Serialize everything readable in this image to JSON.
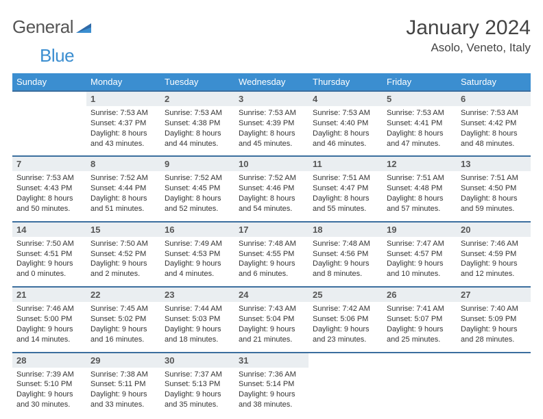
{
  "brand": {
    "part1": "General",
    "part2": "Blue"
  },
  "title": "January 2024",
  "location": "Asolo, Veneto, Italy",
  "colors": {
    "header_bg": "#3b8ed0",
    "row_border": "#3b6e9e",
    "daynum_bg": "#eaeef1",
    "text": "#333333",
    "logo_gray": "#555555",
    "logo_blue": "#3b8ed0"
  },
  "weekdays": [
    "Sunday",
    "Monday",
    "Tuesday",
    "Wednesday",
    "Thursday",
    "Friday",
    "Saturday"
  ],
  "weeks": [
    [
      null,
      {
        "n": "1",
        "sun": "Sunrise: 7:53 AM",
        "set": "Sunset: 4:37 PM",
        "d1": "Daylight: 8 hours",
        "d2": "and 43 minutes."
      },
      {
        "n": "2",
        "sun": "Sunrise: 7:53 AM",
        "set": "Sunset: 4:38 PM",
        "d1": "Daylight: 8 hours",
        "d2": "and 44 minutes."
      },
      {
        "n": "3",
        "sun": "Sunrise: 7:53 AM",
        "set": "Sunset: 4:39 PM",
        "d1": "Daylight: 8 hours",
        "d2": "and 45 minutes."
      },
      {
        "n": "4",
        "sun": "Sunrise: 7:53 AM",
        "set": "Sunset: 4:40 PM",
        "d1": "Daylight: 8 hours",
        "d2": "and 46 minutes."
      },
      {
        "n": "5",
        "sun": "Sunrise: 7:53 AM",
        "set": "Sunset: 4:41 PM",
        "d1": "Daylight: 8 hours",
        "d2": "and 47 minutes."
      },
      {
        "n": "6",
        "sun": "Sunrise: 7:53 AM",
        "set": "Sunset: 4:42 PM",
        "d1": "Daylight: 8 hours",
        "d2": "and 48 minutes."
      }
    ],
    [
      {
        "n": "7",
        "sun": "Sunrise: 7:53 AM",
        "set": "Sunset: 4:43 PM",
        "d1": "Daylight: 8 hours",
        "d2": "and 50 minutes."
      },
      {
        "n": "8",
        "sun": "Sunrise: 7:52 AM",
        "set": "Sunset: 4:44 PM",
        "d1": "Daylight: 8 hours",
        "d2": "and 51 minutes."
      },
      {
        "n": "9",
        "sun": "Sunrise: 7:52 AM",
        "set": "Sunset: 4:45 PM",
        "d1": "Daylight: 8 hours",
        "d2": "and 52 minutes."
      },
      {
        "n": "10",
        "sun": "Sunrise: 7:52 AM",
        "set": "Sunset: 4:46 PM",
        "d1": "Daylight: 8 hours",
        "d2": "and 54 minutes."
      },
      {
        "n": "11",
        "sun": "Sunrise: 7:51 AM",
        "set": "Sunset: 4:47 PM",
        "d1": "Daylight: 8 hours",
        "d2": "and 55 minutes."
      },
      {
        "n": "12",
        "sun": "Sunrise: 7:51 AM",
        "set": "Sunset: 4:48 PM",
        "d1": "Daylight: 8 hours",
        "d2": "and 57 minutes."
      },
      {
        "n": "13",
        "sun": "Sunrise: 7:51 AM",
        "set": "Sunset: 4:50 PM",
        "d1": "Daylight: 8 hours",
        "d2": "and 59 minutes."
      }
    ],
    [
      {
        "n": "14",
        "sun": "Sunrise: 7:50 AM",
        "set": "Sunset: 4:51 PM",
        "d1": "Daylight: 9 hours",
        "d2": "and 0 minutes."
      },
      {
        "n": "15",
        "sun": "Sunrise: 7:50 AM",
        "set": "Sunset: 4:52 PM",
        "d1": "Daylight: 9 hours",
        "d2": "and 2 minutes."
      },
      {
        "n": "16",
        "sun": "Sunrise: 7:49 AM",
        "set": "Sunset: 4:53 PM",
        "d1": "Daylight: 9 hours",
        "d2": "and 4 minutes."
      },
      {
        "n": "17",
        "sun": "Sunrise: 7:48 AM",
        "set": "Sunset: 4:55 PM",
        "d1": "Daylight: 9 hours",
        "d2": "and 6 minutes."
      },
      {
        "n": "18",
        "sun": "Sunrise: 7:48 AM",
        "set": "Sunset: 4:56 PM",
        "d1": "Daylight: 9 hours",
        "d2": "and 8 minutes."
      },
      {
        "n": "19",
        "sun": "Sunrise: 7:47 AM",
        "set": "Sunset: 4:57 PM",
        "d1": "Daylight: 9 hours",
        "d2": "and 10 minutes."
      },
      {
        "n": "20",
        "sun": "Sunrise: 7:46 AM",
        "set": "Sunset: 4:59 PM",
        "d1": "Daylight: 9 hours",
        "d2": "and 12 minutes."
      }
    ],
    [
      {
        "n": "21",
        "sun": "Sunrise: 7:46 AM",
        "set": "Sunset: 5:00 PM",
        "d1": "Daylight: 9 hours",
        "d2": "and 14 minutes."
      },
      {
        "n": "22",
        "sun": "Sunrise: 7:45 AM",
        "set": "Sunset: 5:02 PM",
        "d1": "Daylight: 9 hours",
        "d2": "and 16 minutes."
      },
      {
        "n": "23",
        "sun": "Sunrise: 7:44 AM",
        "set": "Sunset: 5:03 PM",
        "d1": "Daylight: 9 hours",
        "d2": "and 18 minutes."
      },
      {
        "n": "24",
        "sun": "Sunrise: 7:43 AM",
        "set": "Sunset: 5:04 PM",
        "d1": "Daylight: 9 hours",
        "d2": "and 21 minutes."
      },
      {
        "n": "25",
        "sun": "Sunrise: 7:42 AM",
        "set": "Sunset: 5:06 PM",
        "d1": "Daylight: 9 hours",
        "d2": "and 23 minutes."
      },
      {
        "n": "26",
        "sun": "Sunrise: 7:41 AM",
        "set": "Sunset: 5:07 PM",
        "d1": "Daylight: 9 hours",
        "d2": "and 25 minutes."
      },
      {
        "n": "27",
        "sun": "Sunrise: 7:40 AM",
        "set": "Sunset: 5:09 PM",
        "d1": "Daylight: 9 hours",
        "d2": "and 28 minutes."
      }
    ],
    [
      {
        "n": "28",
        "sun": "Sunrise: 7:39 AM",
        "set": "Sunset: 5:10 PM",
        "d1": "Daylight: 9 hours",
        "d2": "and 30 minutes."
      },
      {
        "n": "29",
        "sun": "Sunrise: 7:38 AM",
        "set": "Sunset: 5:11 PM",
        "d1": "Daylight: 9 hours",
        "d2": "and 33 minutes."
      },
      {
        "n": "30",
        "sun": "Sunrise: 7:37 AM",
        "set": "Sunset: 5:13 PM",
        "d1": "Daylight: 9 hours",
        "d2": "and 35 minutes."
      },
      {
        "n": "31",
        "sun": "Sunrise: 7:36 AM",
        "set": "Sunset: 5:14 PM",
        "d1": "Daylight: 9 hours",
        "d2": "and 38 minutes."
      },
      null,
      null,
      null
    ]
  ]
}
